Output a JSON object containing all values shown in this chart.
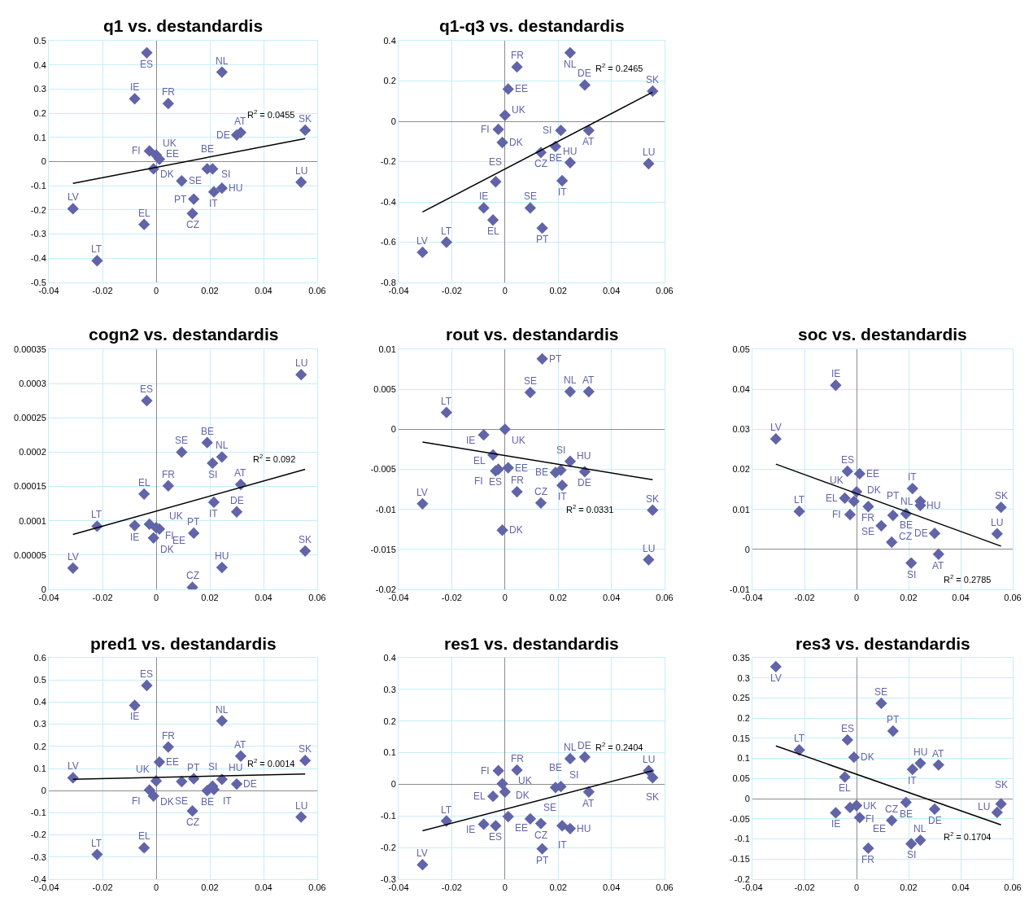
{
  "chart_data": [
    {
      "type": "scatter",
      "title": "q1 vs. destandardis",
      "x": [
        -0.031,
        -0.022,
        -0.008,
        -0.0045,
        -0.0035,
        -0.0025,
        -0.001,
        0,
        0.0012,
        0.0045,
        0.0095,
        0.0135,
        0.014,
        0.019,
        0.021,
        0.0215,
        0.0245,
        0.0245,
        0.03,
        0.0315,
        0.054,
        0.0555
      ],
      "series": [
        {
          "color": "#6264a8",
          "values": [
            -0.195,
            -0.41,
            0.26,
            -0.26,
            0.45,
            0.044,
            -0.03,
            0.027,
            0.01,
            0.24,
            -0.08,
            -0.215,
            -0.155,
            -0.03,
            -0.03,
            -0.125,
            -0.11,
            0.37,
            0.11,
            0.12,
            -0.085,
            0.13
          ]
        },
        {
          "type": "line",
          "color": "#000000",
          "values": [
            -0.09,
            null,
            null,
            null,
            null,
            null,
            null,
            null,
            null,
            null,
            null,
            null,
            null,
            null,
            null,
            null,
            null,
            null,
            null,
            null,
            null,
            0.095
          ],
          "marker": "none"
        }
      ],
      "xlim": [
        -0.04,
        0.06
      ],
      "xticks": [
        -0.04,
        -0.02,
        0,
        0.02,
        0.04,
        0.06
      ],
      "ylim": [
        -0.5,
        0.5
      ],
      "yticks": [
        -0.5,
        -0.4,
        -0.3,
        -0.2,
        -0.1,
        0,
        0.1,
        0.2,
        0.3,
        0.4,
        0.5
      ],
      "grid": true,
      "marker": "diamond",
      "annotations": [
        {
          "text": "LV",
          "x": -0.031,
          "y": -0.195
        },
        {
          "text": "LT",
          "x": -0.022,
          "y": -0.41
        },
        {
          "text": "IE",
          "x": -0.008,
          "y": 0.26
        },
        {
          "text": "EL",
          "x": -0.0045,
          "y": -0.26
        },
        {
          "text": "ES",
          "x": -0.0035,
          "y": 0.45
        },
        {
          "text": "FI",
          "x": -0.0025,
          "y": 0.044
        },
        {
          "text": "DK",
          "x": -0.001,
          "y": -0.03
        },
        {
          "text": "UK",
          "x": 0,
          "y": 0.027
        },
        {
          "text": "EE",
          "x": 0.0012,
          "y": 0.01
        },
        {
          "text": "FR",
          "x": 0.0045,
          "y": 0.24
        },
        {
          "text": "SE",
          "x": 0.0095,
          "y": -0.08
        },
        {
          "text": "CZ",
          "x": 0.0135,
          "y": -0.215
        },
        {
          "text": "PT",
          "x": 0.014,
          "y": -0.155
        },
        {
          "text": "BE",
          "x": 0.019,
          "y": -0.03
        },
        {
          "text": "SI",
          "x": 0.021,
          "y": -0.03
        },
        {
          "text": "IT",
          "x": 0.0215,
          "y": -0.125
        },
        {
          "text": "HU",
          "x": 0.0245,
          "y": -0.11
        },
        {
          "text": "NL",
          "x": 0.0245,
          "y": 0.37
        },
        {
          "text": "DE",
          "x": 0.03,
          "y": 0.11
        },
        {
          "text": "AT",
          "x": 0.0315,
          "y": 0.12
        },
        {
          "text": "LU",
          "x": 0.054,
          "y": -0.085
        },
        {
          "text": "SK",
          "x": 0.0555,
          "y": 0.13
        },
        "R$^{2}$ = 0.0455"
      ]
    },
    {
      "type": "scatter",
      "title": "q1-q3 vs. destandardis",
      "x": [
        -0.031,
        -0.022,
        -0.008,
        -0.0045,
        -0.0035,
        -0.0025,
        -0.001,
        0,
        0.0012,
        0.0045,
        0.0095,
        0.0135,
        0.014,
        0.019,
        0.021,
        0.0215,
        0.0245,
        0.0245,
        0.03,
        0.0315,
        0.054,
        0.0555
      ],
      "series": [
        {
          "color": "#6264a8",
          "values": [
            -0.65,
            -0.6,
            -0.43,
            -0.49,
            -0.3,
            -0.04,
            -0.105,
            0.03,
            0.16,
            0.27,
            -0.43,
            -0.155,
            -0.53,
            -0.125,
            -0.045,
            -0.295,
            -0.205,
            0.34,
            0.18,
            -0.045,
            -0.21,
            0.15
          ]
        },
        {
          "type": "line",
          "color": "#000000",
          "values": [
            -0.45,
            null,
            null,
            null,
            null,
            null,
            null,
            null,
            null,
            null,
            null,
            null,
            null,
            null,
            null,
            null,
            null,
            null,
            null,
            null,
            null,
            0.145
          ],
          "marker": "none"
        }
      ],
      "xlim": [
        -0.04,
        0.06
      ],
      "xticks": [
        -0.04,
        -0.02,
        0,
        0.02,
        0.04,
        0.06
      ],
      "ylim": [
        -0.8,
        0.4
      ],
      "yticks": [
        -0.8,
        -0.6,
        -0.4,
        -0.2,
        0,
        0.2,
        0.4
      ],
      "grid": true,
      "marker": "diamond",
      "annotations": [
        {
          "text": "LV",
          "x": -0.031,
          "y": -0.65
        },
        {
          "text": "LT",
          "x": -0.022,
          "y": -0.6
        },
        {
          "text": "IE",
          "x": -0.008,
          "y": -0.43
        },
        {
          "text": "EL",
          "x": -0.0045,
          "y": -0.49
        },
        {
          "text": "ES",
          "x": -0.0035,
          "y": -0.3
        },
        {
          "text": "FI",
          "x": -0.0025,
          "y": -0.04
        },
        {
          "text": "DK",
          "x": -0.001,
          "y": -0.105
        },
        {
          "text": "UK",
          "x": 0,
          "y": 0.03
        },
        {
          "text": "EE",
          "x": 0.0012,
          "y": 0.16
        },
        {
          "text": "FR",
          "x": 0.0045,
          "y": 0.27
        },
        {
          "text": "SE",
          "x": 0.0095,
          "y": -0.43
        },
        {
          "text": "CZ",
          "x": 0.0135,
          "y": -0.155
        },
        {
          "text": "PT",
          "x": 0.014,
          "y": -0.53
        },
        {
          "text": "BE",
          "x": 0.019,
          "y": -0.125
        },
        {
          "text": "SI",
          "x": 0.021,
          "y": -0.045
        },
        {
          "text": "IT",
          "x": 0.0215,
          "y": -0.295
        },
        {
          "text": "HU",
          "x": 0.0245,
          "y": -0.205
        },
        {
          "text": "NL",
          "x": 0.0245,
          "y": 0.34
        },
        {
          "text": "DE",
          "x": 0.03,
          "y": 0.18
        },
        {
          "text": "AT",
          "x": 0.0315,
          "y": -0.045
        },
        {
          "text": "LU",
          "x": 0.054,
          "y": -0.21
        },
        {
          "text": "SK",
          "x": 0.0555,
          "y": 0.15
        },
        "R$^{2}$ = 0.2465"
      ]
    },
    {
      "type": "scatter",
      "title": "cogn2 vs. destandardis",
      "x": [
        -0.031,
        -0.022,
        -0.008,
        -0.0045,
        -0.0035,
        -0.0025,
        -0.001,
        0,
        0.0012,
        0.0045,
        0.0095,
        0.0135,
        0.014,
        0.019,
        0.021,
        0.0215,
        0.0245,
        0.0245,
        0.03,
        0.0315,
        0.054,
        0.0555
      ],
      "series": [
        {
          "color": "#6264a8",
          "values": [
            3.1e-05,
            9.2e-05,
            9.3e-05,
            0.000139,
            0.000275,
            9.5e-05,
            7.5e-05,
            9e-05,
            8.8e-05,
            0.000151,
            0.0002,
            3e-06,
            8.2e-05,
            0.000214,
            0.000184,
            0.000127,
            3.2e-05,
            0.000193,
            0.000113,
            0.000153,
            0.000313,
            5.6e-05
          ]
        },
        {
          "type": "line",
          "color": "#000000",
          "values": [
            8e-05,
            null,
            null,
            null,
            null,
            null,
            null,
            null,
            null,
            null,
            null,
            null,
            null,
            null,
            null,
            null,
            null,
            null,
            null,
            null,
            null,
            0.000175
          ],
          "marker": "none"
        }
      ],
      "xlim": [
        -0.04,
        0.06
      ],
      "xticks": [
        -0.04,
        -0.02,
        0,
        0.02,
        0.04,
        0.06
      ],
      "ylim": [
        0,
        0.00035
      ],
      "yticks": [
        0,
        {
          "value": 5e-05,
          "label": "0.00005"
        },
        0.0001,
        0.00015,
        0.0002,
        0.00025,
        0.0003,
        0.00035
      ],
      "grid": true,
      "marker": "diamond",
      "annotations": [
        {
          "text": "LV",
          "x": -0.031,
          "y": 3.1e-05
        },
        {
          "text": "LT",
          "x": -0.022,
          "y": 9.2e-05
        },
        {
          "text": "IE",
          "x": -0.008,
          "y": 9.3e-05
        },
        {
          "text": "EL",
          "x": -0.0045,
          "y": 0.000139
        },
        {
          "text": "ES",
          "x": -0.0035,
          "y": 0.000275
        },
        {
          "text": "FI",
          "x": -0.0025,
          "y": 9.5e-05
        },
        {
          "text": "DK",
          "x": -0.001,
          "y": 7.5e-05
        },
        {
          "text": "UK",
          "x": 0,
          "y": 9e-05
        },
        {
          "text": "EE",
          "x": 0.0012,
          "y": 8.8e-05
        },
        {
          "text": "FR",
          "x": 0.0045,
          "y": 0.000151
        },
        {
          "text": "SE",
          "x": 0.0095,
          "y": 0.0002
        },
        {
          "text": "CZ",
          "x": 0.0135,
          "y": 3e-06
        },
        {
          "text": "PT",
          "x": 0.014,
          "y": 8.2e-05
        },
        {
          "text": "BE",
          "x": 0.019,
          "y": 0.000214
        },
        {
          "text": "SI",
          "x": 0.021,
          "y": 0.000184
        },
        {
          "text": "IT",
          "x": 0.0215,
          "y": 0.000127
        },
        {
          "text": "HU",
          "x": 0.0245,
          "y": 3.2e-05
        },
        {
          "text": "NL",
          "x": 0.0245,
          "y": 0.000193
        },
        {
          "text": "DE",
          "x": 0.03,
          "y": 0.000113
        },
        {
          "text": "AT",
          "x": 0.0315,
          "y": 0.000153
        },
        {
          "text": "LU",
          "x": 0.054,
          "y": 0.000313
        },
        {
          "text": "SK",
          "x": 0.0555,
          "y": 5.6e-05
        },
        "R$^{2}$ = 0.092"
      ]
    },
    {
      "type": "scatter",
      "title": "rout vs. destandardis",
      "x": [
        -0.031,
        -0.022,
        -0.008,
        -0.0045,
        -0.0035,
        -0.0025,
        -0.001,
        0,
        0.0012,
        0.0045,
        0.0095,
        0.0135,
        0.014,
        0.019,
        0.021,
        0.0215,
        0.0245,
        0.0245,
        0.03,
        0.0315,
        0.054,
        0.0555
      ],
      "series": [
        {
          "color": "#6264a8",
          "values": [
            -0.0093,
            0.0021,
            -0.0007,
            -0.0032,
            -0.0052,
            -0.005,
            -0.0126,
            0,
            -0.0048,
            -0.0078,
            0.0046,
            -0.0092,
            0.0088,
            -0.0054,
            -0.0051,
            -0.007,
            -0.004,
            0.0047,
            -0.0053,
            0.0047,
            -0.0163,
            -0.0101
          ]
        },
        {
          "type": "line",
          "color": "#000000",
          "values": [
            -0.0016,
            null,
            null,
            null,
            null,
            null,
            null,
            null,
            null,
            null,
            null,
            null,
            null,
            null,
            null,
            null,
            null,
            null,
            null,
            null,
            null,
            -0.0063
          ],
          "marker": "none"
        }
      ],
      "xlim": [
        -0.04,
        0.06
      ],
      "xticks": [
        -0.04,
        -0.02,
        0,
        0.02,
        0.04,
        0.06
      ],
      "ylim": [
        -0.02,
        0.01
      ],
      "yticks": [
        -0.02,
        -0.015,
        -0.01,
        -0.005,
        0,
        0.005,
        0.01
      ],
      "grid": true,
      "marker": "diamond",
      "annotations": [
        {
          "text": "LV",
          "x": -0.031,
          "y": -0.0093
        },
        {
          "text": "LT",
          "x": -0.022,
          "y": 0.0021
        },
        {
          "text": "IE",
          "x": -0.008,
          "y": -0.0007
        },
        {
          "text": "EL",
          "x": -0.0045,
          "y": -0.0032
        },
        {
          "text": "ES",
          "x": -0.0035,
          "y": -0.0052
        },
        {
          "text": "FI",
          "x": -0.0025,
          "y": -0.005
        },
        {
          "text": "DK",
          "x": -0.001,
          "y": -0.0126
        },
        {
          "text": "UK",
          "x": 0,
          "y": 0
        },
        {
          "text": "EE",
          "x": 0.0012,
          "y": -0.0048
        },
        {
          "text": "FR",
          "x": 0.0045,
          "y": -0.0078
        },
        {
          "text": "SE",
          "x": 0.0095,
          "y": 0.0046
        },
        {
          "text": "CZ",
          "x": 0.0135,
          "y": -0.0092
        },
        {
          "text": "PT",
          "x": 0.014,
          "y": 0.0088
        },
        {
          "text": "BE",
          "x": 0.019,
          "y": -0.0054
        },
        {
          "text": "SI",
          "x": 0.021,
          "y": -0.0051
        },
        {
          "text": "IT",
          "x": 0.0215,
          "y": -0.007
        },
        {
          "text": "HU",
          "x": 0.0245,
          "y": -0.004
        },
        {
          "text": "NL",
          "x": 0.0245,
          "y": 0.0047
        },
        {
          "text": "DE",
          "x": 0.03,
          "y": -0.0053
        },
        {
          "text": "AT",
          "x": 0.0315,
          "y": 0.0047
        },
        {
          "text": "LU",
          "x": 0.054,
          "y": -0.0163
        },
        {
          "text": "SK",
          "x": 0.0555,
          "y": -0.0101
        },
        "R$^{2}$ = 0.0331"
      ]
    },
    {
      "type": "scatter",
      "title": "soc vs. destandardis",
      "x": [
        -0.031,
        -0.022,
        -0.008,
        -0.0045,
        -0.0035,
        -0.0025,
        -0.001,
        0,
        0.0012,
        0.0045,
        0.0095,
        0.0135,
        0.014,
        0.019,
        0.021,
        0.0215,
        0.0245,
        0.0245,
        0.03,
        0.0315,
        0.054,
        0.0555
      ],
      "series": [
        {
          "color": "#6264a8",
          "values": [
            0.0276,
            0.0095,
            0.041,
            0.0128,
            0.0195,
            0.0087,
            0.012,
            0.0144,
            0.0189,
            0.0107,
            0.0059,
            0.0018,
            0.0085,
            0.0089,
            -0.0034,
            0.0152,
            0.011,
            0.012,
            0.004,
            -0.0012,
            0.0039,
            0.0105
          ]
        },
        {
          "type": "line",
          "color": "#000000",
          "values": [
            0.0213,
            null,
            null,
            null,
            null,
            null,
            null,
            null,
            null,
            null,
            null,
            null,
            null,
            null,
            null,
            null,
            null,
            null,
            null,
            null,
            null,
            0.0008
          ],
          "marker": "none"
        }
      ],
      "xlim": [
        -0.04,
        0.06
      ],
      "xticks": [
        -0.04,
        -0.02,
        0,
        0.02,
        0.04,
        0.06
      ],
      "ylim": [
        -0.01,
        0.05
      ],
      "yticks": [
        -0.01,
        0,
        0.01,
        0.02,
        0.03,
        0.04,
        0.05
      ],
      "grid": true,
      "marker": "diamond",
      "annotations": [
        {
          "text": "LV",
          "x": -0.031,
          "y": 0.0276
        },
        {
          "text": "LT",
          "x": -0.022,
          "y": 0.0095
        },
        {
          "text": "IE",
          "x": -0.008,
          "y": 0.041
        },
        {
          "text": "EL",
          "x": -0.0045,
          "y": 0.0128
        },
        {
          "text": "ES",
          "x": -0.0035,
          "y": 0.0195
        },
        {
          "text": "FI",
          "x": -0.0025,
          "y": 0.0087
        },
        {
          "text": "DK",
          "x": -0.001,
          "y": 0.012
        },
        {
          "text": "UK",
          "x": 0,
          "y": 0.0144
        },
        {
          "text": "EE",
          "x": 0.0012,
          "y": 0.0189
        },
        {
          "text": "FR",
          "x": 0.0045,
          "y": 0.0107
        },
        {
          "text": "SE",
          "x": 0.0095,
          "y": 0.0059
        },
        {
          "text": "CZ",
          "x": 0.0135,
          "y": 0.0018
        },
        {
          "text": "PT",
          "x": 0.014,
          "y": 0.0085
        },
        {
          "text": "BE",
          "x": 0.019,
          "y": 0.0089
        },
        {
          "text": "SI",
          "x": 0.021,
          "y": -0.0034
        },
        {
          "text": "IT",
          "x": 0.0215,
          "y": 0.0152
        },
        {
          "text": "HU",
          "x": 0.0245,
          "y": 0.011
        },
        {
          "text": "NL",
          "x": 0.0245,
          "y": 0.012
        },
        {
          "text": "DE",
          "x": 0.03,
          "y": 0.004
        },
        {
          "text": "AT",
          "x": 0.0315,
          "y": -0.0012
        },
        {
          "text": "LU",
          "x": 0.054,
          "y": 0.0039
        },
        {
          "text": "SK",
          "x": 0.0555,
          "y": 0.0105
        },
        "R$^{2}$ = 0.2785"
      ]
    },
    {
      "type": "scatter",
      "title": "pred1 vs. destandardis",
      "x": [
        -0.031,
        -0.022,
        -0.008,
        -0.0045,
        -0.0035,
        -0.0025,
        -0.001,
        0,
        0.0012,
        0.0045,
        0.0095,
        0.0135,
        0.014,
        0.019,
        0.021,
        0.0215,
        0.0245,
        0.0245,
        0.03,
        0.0315,
        0.054,
        0.0555
      ],
      "series": [
        {
          "color": "#6264a8",
          "values": [
            0.058,
            -0.288,
            0.385,
            -0.258,
            0.475,
            0.003,
            -0.024,
            0.044,
            0.129,
            0.197,
            0.041,
            -0.092,
            0.054,
            0.0,
            0.02,
            0.005,
            0.051,
            0.315,
            0.03,
            0.156,
            -0.119,
            0.136
          ]
        },
        {
          "type": "line",
          "color": "#000000",
          "values": [
            0.051,
            null,
            null,
            null,
            null,
            null,
            null,
            null,
            null,
            null,
            null,
            null,
            null,
            null,
            null,
            null,
            null,
            null,
            null,
            null,
            null,
            0.075
          ],
          "marker": "none"
        }
      ],
      "xlim": [
        -0.04,
        0.06
      ],
      "xticks": [
        -0.04,
        -0.02,
        0,
        0.02,
        0.04,
        0.06
      ],
      "ylim": [
        -0.4,
        0.6
      ],
      "yticks": [
        -0.4,
        -0.3,
        -0.2,
        -0.1,
        0,
        0.1,
        0.2,
        0.3,
        0.4,
        0.5,
        0.6
      ],
      "grid": true,
      "marker": "diamond",
      "annotations": [
        {
          "text": "LV",
          "x": -0.031,
          "y": 0.058
        },
        {
          "text": "LT",
          "x": -0.022,
          "y": -0.288
        },
        {
          "text": "IE",
          "x": -0.008,
          "y": 0.385
        },
        {
          "text": "EL",
          "x": -0.0045,
          "y": -0.258
        },
        {
          "text": "ES",
          "x": -0.0035,
          "y": 0.475
        },
        {
          "text": "FI",
          "x": -0.0025,
          "y": 0.003
        },
        {
          "text": "DK",
          "x": -0.001,
          "y": -0.024
        },
        {
          "text": "UK",
          "x": 0,
          "y": 0.044
        },
        {
          "text": "EE",
          "x": 0.0012,
          "y": 0.129
        },
        {
          "text": "FR",
          "x": 0.0045,
          "y": 0.197
        },
        {
          "text": "SE",
          "x": 0.0095,
          "y": 0.041
        },
        {
          "text": "CZ",
          "x": 0.0135,
          "y": -0.092
        },
        {
          "text": "PT",
          "x": 0.014,
          "y": 0.054
        },
        {
          "text": "BE",
          "x": 0.019,
          "y": 0.0
        },
        {
          "text": "SI",
          "x": 0.021,
          "y": 0.02
        },
        {
          "text": "IT",
          "x": 0.0215,
          "y": 0.005
        },
        {
          "text": "HU",
          "x": 0.0245,
          "y": 0.051
        },
        {
          "text": "NL",
          "x": 0.0245,
          "y": 0.315
        },
        {
          "text": "DE",
          "x": 0.03,
          "y": 0.03
        },
        {
          "text": "AT",
          "x": 0.0315,
          "y": 0.156
        },
        {
          "text": "LU",
          "x": 0.054,
          "y": -0.119
        },
        {
          "text": "SK",
          "x": 0.0555,
          "y": 0.136
        },
        "R$^{2}$ = 0.0014"
      ]
    },
    {
      "type": "scatter",
      "title": "res1 vs. destandardis",
      "x": [
        -0.031,
        -0.022,
        -0.008,
        -0.0045,
        -0.0035,
        -0.0025,
        -0.001,
        0,
        0.0012,
        0.0045,
        0.0095,
        0.0135,
        0.014,
        0.019,
        0.021,
        0.0215,
        0.0245,
        0.0245,
        0.03,
        0.0315,
        0.054,
        0.0555
      ],
      "series": [
        {
          "color": "#6264a8",
          "values": [
            -0.254,
            -0.116,
            -0.126,
            -0.038,
            -0.131,
            0.043,
            0.002,
            -0.024,
            -0.102,
            0.045,
            -0.109,
            -0.124,
            -0.204,
            -0.01,
            -0.007,
            -0.131,
            -0.14,
            0.081,
            0.086,
            -0.024,
            0.043,
            0.021
          ]
        },
        {
          "type": "line",
          "color": "#000000",
          "values": [
            -0.147,
            null,
            null,
            null,
            null,
            null,
            null,
            null,
            null,
            null,
            null,
            null,
            null,
            null,
            null,
            null,
            null,
            null,
            null,
            null,
            null,
            0.043
          ],
          "marker": "none"
        }
      ],
      "xlim": [
        -0.04,
        0.06
      ],
      "xticks": [
        -0.04,
        -0.02,
        0,
        0.02,
        0.04,
        0.06
      ],
      "ylim": [
        -0.3,
        0.4
      ],
      "yticks": [
        -0.3,
        -0.2,
        -0.1,
        0,
        0.1,
        0.2,
        0.3,
        0.4
      ],
      "grid": true,
      "marker": "diamond",
      "annotations": [
        {
          "text": "LV",
          "x": -0.031,
          "y": -0.254
        },
        {
          "text": "LT",
          "x": -0.022,
          "y": -0.116
        },
        {
          "text": "IE",
          "x": -0.008,
          "y": -0.126
        },
        {
          "text": "EL",
          "x": -0.0045,
          "y": -0.038
        },
        {
          "text": "ES",
          "x": -0.0035,
          "y": -0.131
        },
        {
          "text": "FI",
          "x": -0.0025,
          "y": 0.043
        },
        {
          "text": "DK",
          "x": -0.001,
          "y": 0.002
        },
        {
          "text": "UK",
          "x": 0,
          "y": -0.024
        },
        {
          "text": "EE",
          "x": 0.0012,
          "y": -0.102
        },
        {
          "text": "FR",
          "x": 0.0045,
          "y": 0.045
        },
        {
          "text": "SE",
          "x": 0.0095,
          "y": -0.109
        },
        {
          "text": "CZ",
          "x": 0.0135,
          "y": -0.124
        },
        {
          "text": "PT",
          "x": 0.014,
          "y": -0.204
        },
        {
          "text": "BE",
          "x": 0.019,
          "y": -0.01
        },
        {
          "text": "SI",
          "x": 0.021,
          "y": -0.007
        },
        {
          "text": "IT",
          "x": 0.0215,
          "y": -0.131
        },
        {
          "text": "HU",
          "x": 0.0245,
          "y": -0.14
        },
        {
          "text": "NL",
          "x": 0.0245,
          "y": 0.081
        },
        {
          "text": "DE",
          "x": 0.03,
          "y": 0.086
        },
        {
          "text": "AT",
          "x": 0.0315,
          "y": -0.024
        },
        {
          "text": "LU",
          "x": 0.054,
          "y": 0.043
        },
        {
          "text": "SK",
          "x": 0.0555,
          "y": 0.021
        },
        "R$^{2}$ = 0.2404"
      ]
    },
    {
      "type": "scatter",
      "title": "res3 vs. destandardis",
      "x": [
        -0.031,
        -0.022,
        -0.008,
        -0.0045,
        -0.0035,
        -0.0025,
        -0.001,
        0,
        0.0012,
        0.0045,
        0.0095,
        0.0135,
        0.014,
        0.019,
        0.021,
        0.0215,
        0.0245,
        0.0245,
        0.03,
        0.0315,
        0.054,
        0.0555
      ],
      "series": [
        {
          "color": "#6264a8",
          "values": [
            0.328,
            0.121,
            -0.035,
            0.054,
            0.146,
            -0.022,
            0.103,
            -0.017,
            -0.047,
            -0.123,
            0.237,
            -0.054,
            0.168,
            -0.009,
            -0.112,
            0.073,
            0.088,
            -0.103,
            -0.026,
            0.084,
            -0.034,
            -0.013
          ]
        },
        {
          "type": "line",
          "color": "#000000",
          "values": [
            0.131,
            null,
            null,
            null,
            null,
            null,
            null,
            null,
            null,
            null,
            null,
            null,
            null,
            null,
            null,
            null,
            null,
            null,
            null,
            null,
            null,
            -0.065
          ],
          "marker": "none"
        }
      ],
      "xlim": [
        -0.04,
        0.06
      ],
      "xticks": [
        -0.04,
        -0.02,
        0,
        0.02,
        0.04,
        0.06
      ],
      "ylim": [
        -0.2,
        0.35
      ],
      "yticks": [
        -0.2,
        -0.15,
        -0.1,
        -0.05,
        0,
        0.05,
        0.1,
        0.15,
        0.2,
        0.25,
        0.3,
        0.35
      ],
      "grid": true,
      "marker": "diamond",
      "annotations": [
        {
          "text": "LV",
          "x": -0.031,
          "y": 0.328
        },
        {
          "text": "LT",
          "x": -0.022,
          "y": 0.121
        },
        {
          "text": "IE",
          "x": -0.008,
          "y": -0.035
        },
        {
          "text": "EL",
          "x": -0.0045,
          "y": 0.054
        },
        {
          "text": "ES",
          "x": -0.0035,
          "y": 0.146
        },
        {
          "text": "FI",
          "x": -0.0025,
          "y": -0.022
        },
        {
          "text": "DK",
          "x": -0.001,
          "y": 0.103
        },
        {
          "text": "UK",
          "x": 0,
          "y": -0.017
        },
        {
          "text": "EE",
          "x": 0.0012,
          "y": -0.047
        },
        {
          "text": "FR",
          "x": 0.0045,
          "y": -0.123
        },
        {
          "text": "SE",
          "x": 0.0095,
          "y": 0.237
        },
        {
          "text": "CZ",
          "x": 0.0135,
          "y": -0.054
        },
        {
          "text": "PT",
          "x": 0.014,
          "y": 0.168
        },
        {
          "text": "BE",
          "x": 0.019,
          "y": -0.009
        },
        {
          "text": "SI",
          "x": 0.021,
          "y": -0.112
        },
        {
          "text": "IT",
          "x": 0.0215,
          "y": 0.073
        },
        {
          "text": "HU",
          "x": 0.0245,
          "y": 0.088
        },
        {
          "text": "NL",
          "x": 0.0245,
          "y": -0.103
        },
        {
          "text": "DE",
          "x": 0.03,
          "y": -0.026
        },
        {
          "text": "AT",
          "x": 0.0315,
          "y": 0.084
        },
        {
          "text": "LU",
          "x": 0.054,
          "y": -0.034
        },
        {
          "text": "SK",
          "x": 0.0555,
          "y": -0.013
        },
        "R$^{2}$ = 0.1704"
      ]
    }
  ]
}
